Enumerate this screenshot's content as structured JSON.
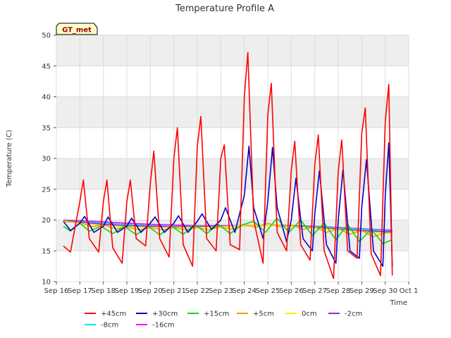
{
  "chart_data": {
    "type": "line",
    "title": "Temperature Profile A",
    "xlabel": "Time",
    "ylabel": "Temperature (C)",
    "ylim": [
      10,
      50
    ],
    "yticks": [
      10,
      15,
      20,
      25,
      30,
      35,
      40,
      45,
      50
    ],
    "xlim": [
      16,
      31
    ],
    "xticks": [
      16,
      17,
      18,
      19,
      20,
      21,
      22,
      23,
      24,
      25,
      26,
      27,
      28,
      29,
      30,
      31
    ],
    "xtick_labels": [
      "Sep 16",
      "Sep 17",
      "Sep 18",
      "Sep 19",
      "Sep 20",
      "Sep 21",
      "Sep 22",
      "Sep 23",
      "Sep 24",
      "Sep 25",
      "Sep 26",
      "Sep 27",
      "Sep 28",
      "Sep 29",
      "Sep 30",
      "Oct 1"
    ],
    "x_unit": "day of Sep",
    "grid": true,
    "legend_position": "bottom",
    "badge": "GT_met",
    "series": [
      {
        "name": "+45cm",
        "color": "#ff0000",
        "x": [
          16.3,
          16.6,
          17.0,
          17.15,
          17.4,
          17.8,
          18.0,
          18.15,
          18.4,
          18.8,
          19.0,
          19.15,
          19.4,
          19.8,
          20.0,
          20.15,
          20.4,
          20.8,
          21.0,
          21.15,
          21.4,
          21.8,
          22.0,
          22.15,
          22.4,
          22.8,
          23.0,
          23.15,
          23.4,
          23.8,
          24.0,
          24.15,
          24.4,
          24.8,
          25.0,
          25.15,
          25.4,
          25.8,
          26.0,
          26.15,
          26.4,
          26.8,
          27.0,
          27.15,
          27.4,
          27.8,
          28.0,
          28.15,
          28.4,
          28.8,
          29.0,
          29.15,
          29.4,
          29.8,
          30.0,
          30.15,
          30.3
        ],
        "y": [
          15.8,
          14.8,
          23.0,
          26.5,
          17.0,
          14.8,
          23.0,
          26.5,
          15.5,
          13.0,
          23.0,
          26.5,
          17.0,
          15.8,
          26.0,
          31.2,
          17.0,
          14.0,
          30.0,
          35.0,
          16.0,
          12.5,
          32.0,
          36.8,
          17.0,
          15.0,
          30.0,
          32.2,
          16.0,
          15.2,
          40.0,
          47.2,
          20.0,
          13.0,
          37.0,
          42.2,
          18.0,
          15.0,
          28.0,
          32.8,
          16.0,
          13.5,
          29.0,
          33.8,
          15.0,
          10.5,
          28.0,
          33.0,
          15.0,
          13.8,
          34.0,
          38.2,
          14.5,
          11.0,
          36.0,
          42.0,
          11.0
        ]
      },
      {
        "name": "+30cm",
        "color": "#0000cc",
        "x": [
          16.3,
          16.6,
          17.0,
          17.2,
          17.6,
          18.0,
          18.2,
          18.6,
          19.0,
          19.2,
          19.6,
          20.0,
          20.2,
          20.6,
          21.0,
          21.2,
          21.6,
          22.0,
          22.2,
          22.6,
          23.0,
          23.2,
          23.6,
          24.0,
          24.2,
          24.4,
          24.8,
          25.0,
          25.2,
          25.4,
          25.8,
          26.0,
          26.2,
          26.5,
          26.9,
          27.0,
          27.2,
          27.5,
          27.9,
          28.0,
          28.2,
          28.5,
          28.9,
          29.0,
          29.2,
          29.5,
          29.9,
          30.0,
          30.15,
          30.3
        ],
        "y": [
          19.8,
          18.3,
          19.5,
          20.6,
          18.0,
          19.0,
          20.5,
          18.0,
          19.0,
          20.3,
          18.0,
          19.5,
          20.5,
          18.0,
          19.5,
          20.7,
          18.0,
          19.8,
          21.0,
          18.5,
          20.0,
          22.0,
          18.0,
          24.0,
          32.0,
          22.0,
          17.0,
          23.0,
          31.8,
          22.0,
          16.5,
          20.0,
          26.8,
          17.0,
          15.0,
          21.0,
          28.0,
          16.0,
          13.0,
          20.0,
          28.2,
          15.0,
          13.8,
          22.0,
          29.8,
          15.0,
          12.5,
          24.0,
          32.5,
          12.5
        ]
      },
      {
        "name": "+15cm",
        "color": "#00dd00",
        "x": [
          16.3,
          16.6,
          17.0,
          17.4,
          17.9,
          18.4,
          18.9,
          19.4,
          19.9,
          20.4,
          20.9,
          21.4,
          21.9,
          22.4,
          22.9,
          23.4,
          23.9,
          24.4,
          24.9,
          25.4,
          25.9,
          26.4,
          26.9,
          27.4,
          27.9,
          28.4,
          28.9,
          29.4,
          29.9,
          30.3
        ],
        "y": [
          19.0,
          18.2,
          19.5,
          18.2,
          19.0,
          17.8,
          19.0,
          17.6,
          19.0,
          17.6,
          19.0,
          17.7,
          19.3,
          17.8,
          19.3,
          17.8,
          19.2,
          19.8,
          18.0,
          20.3,
          18.0,
          20.0,
          17.5,
          19.5,
          16.8,
          19.3,
          16.5,
          18.5,
          16.2,
          16.8
        ]
      },
      {
        "name": "+5cm",
        "color": "#ff9900",
        "x": [
          16.3,
          17.0,
          17.5,
          18.0,
          18.5,
          19.0,
          19.5,
          20.0,
          20.5,
          21.0,
          21.5,
          22.0,
          22.5,
          23.0,
          23.5,
          24.0,
          24.5,
          25.0,
          25.5,
          26.0,
          26.5,
          27.0,
          27.5,
          28.0,
          28.5,
          29.0,
          29.5,
          30.0,
          30.3
        ],
        "y": [
          19.8,
          19.6,
          18.9,
          19.2,
          18.6,
          18.9,
          18.4,
          18.8,
          18.4,
          18.8,
          18.4,
          18.8,
          18.4,
          18.9,
          18.5,
          19.3,
          18.8,
          19.5,
          18.9,
          19.2,
          18.5,
          18.9,
          18.0,
          18.6,
          17.7,
          18.3,
          17.3,
          17.9,
          18.0
        ]
      },
      {
        "name": "0cm",
        "color": "#ffee00",
        "x": [
          16.3,
          17.0,
          18.0,
          19.0,
          20.0,
          21.0,
          22.0,
          23.0,
          24.0,
          25.0,
          26.0,
          27.0,
          28.0,
          29.0,
          30.0,
          30.3
        ],
        "y": [
          19.9,
          19.5,
          19.1,
          18.9,
          18.8,
          18.8,
          18.8,
          18.9,
          19.1,
          19.2,
          19.0,
          18.7,
          18.4,
          18.1,
          17.9,
          18.0
        ]
      },
      {
        "name": "-2cm",
        "color": "#8a2be2",
        "x": [
          16.3,
          17.0,
          18.0,
          19.0,
          20.0,
          21.0,
          22.0,
          23.0,
          24.0,
          25.0,
          26.0,
          27.0,
          28.0,
          29.0,
          30.0,
          30.3
        ],
        "y": [
          20.0,
          19.7,
          19.3,
          19.1,
          19.0,
          18.9,
          18.9,
          19.0,
          19.1,
          19.2,
          19.1,
          18.8,
          18.5,
          18.3,
          18.1,
          18.2
        ]
      },
      {
        "name": "-8cm",
        "color": "#00e5e5",
        "x": [
          16.3,
          17.0,
          18.0,
          19.0,
          20.0,
          21.0,
          22.0,
          23.0,
          24.0,
          25.0,
          26.0,
          27.0,
          28.0,
          29.0,
          30.0,
          30.3
        ],
        "y": [
          20.0,
          19.8,
          19.5,
          19.3,
          19.1,
          19.0,
          19.0,
          19.0,
          19.1,
          19.2,
          19.1,
          18.9,
          18.7,
          18.5,
          18.3,
          18.3
        ]
      },
      {
        "name": "-16cm",
        "color": "#ff00ff",
        "x": [
          16.3,
          17.0,
          18.0,
          19.0,
          20.0,
          21.0,
          22.0,
          23.0,
          24.0,
          25.0,
          26.0,
          27.0,
          28.0,
          29.0,
          30.0,
          30.3
        ],
        "y": [
          20.0,
          19.9,
          19.7,
          19.5,
          19.3,
          19.2,
          19.1,
          19.1,
          19.1,
          19.2,
          19.1,
          19.0,
          18.8,
          18.6,
          18.4,
          18.4
        ]
      }
    ]
  }
}
